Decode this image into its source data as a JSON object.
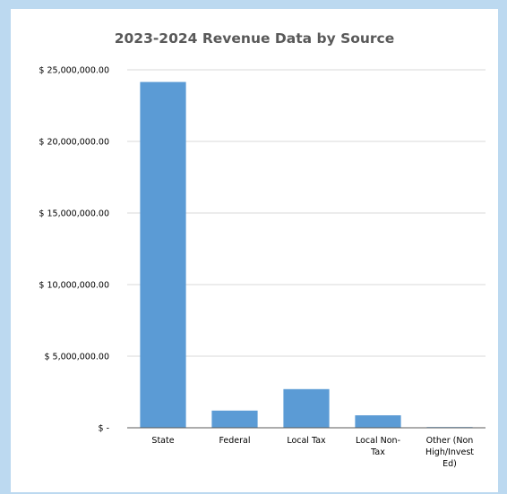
{
  "chart_data": {
    "type": "bar",
    "title": "2023-2024 Revenue Data by Source",
    "categories": [
      "State",
      "Federal",
      "Local Tax",
      "Local Non-Tax",
      "Other (Non High/Invest Ed)"
    ],
    "category_label_lines": [
      [
        "State"
      ],
      [
        "Federal"
      ],
      [
        "Local Tax"
      ],
      [
        "Local Non-",
        "Tax"
      ],
      [
        "Other (Non",
        "High/Invest",
        "Ed)"
      ]
    ],
    "values": [
      24150000,
      1200000,
      2700000,
      870000,
      50000
    ],
    "ylim": [
      0,
      25000000
    ],
    "yticks": [
      0,
      5000000,
      10000000,
      15000000,
      20000000,
      25000000
    ],
    "ytick_labels": [
      "$ -",
      "$ 5,000,000.00",
      "$ 10,000,000.00",
      "$ 15,000,000.00",
      "$ 20,000,000.00",
      "$ 25,000,000.00"
    ],
    "xlabel": "",
    "ylabel": "",
    "grid": true,
    "legend": false,
    "bar_color": "#5b9bd5",
    "grid_color": "#d9d9d9",
    "axis_color": "#595959"
  }
}
